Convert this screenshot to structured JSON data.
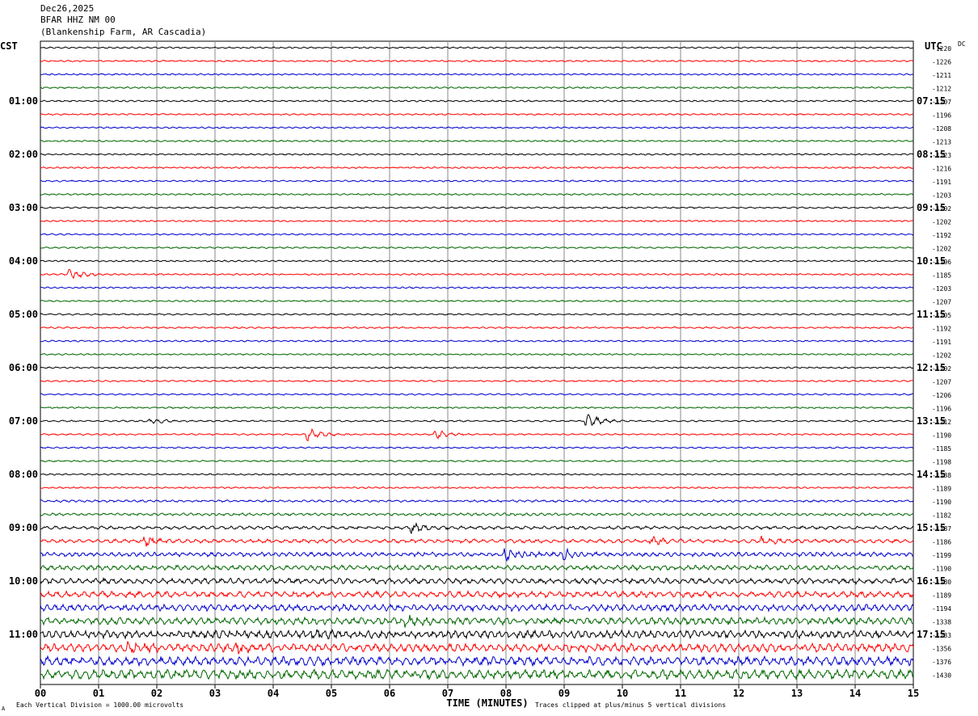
{
  "header": {
    "date": "Dec26,2025",
    "station": "BFAR HHZ NM 00",
    "location": "(Blankenship Farm, AR Cascadia)"
  },
  "labels": {
    "left_tz": "CST",
    "right_tz": "UTC",
    "dc": "DC",
    "xlabel": "TIME (MINUTES)",
    "scale_note": "Each Vertical Division = 1000.00 microvolts",
    "clip_note": "Traces clipped at plus/minus 5 vertical divisions",
    "corner_mark": "A"
  },
  "colors": {
    "trace_cycle": [
      "#000000",
      "#ff0000",
      "#0000cc",
      "#006600"
    ],
    "grid": "#888888"
  },
  "chart_data": {
    "type": "line",
    "subtype": "helicorder",
    "x_ticks": [
      "00",
      "01",
      "02",
      "03",
      "04",
      "05",
      "06",
      "07",
      "08",
      "09",
      "10",
      "11",
      "12",
      "13",
      "14",
      "15"
    ],
    "xlim": [
      0,
      15
    ],
    "minutes_per_trace": 15,
    "left_hour_labels": [
      "01:00",
      "02:00",
      "03:00",
      "04:00",
      "05:00",
      "06:00",
      "07:00",
      "08:00",
      "09:00",
      "10:00",
      "11:00"
    ],
    "right_hour_labels": [
      "07:15",
      "08:15",
      "09:15",
      "10:15",
      "11:15",
      "12:15",
      "13:15",
      "14:15",
      "15:15",
      "16:15",
      "17:15"
    ],
    "dc_offsets": [
      "-1220",
      "-1226",
      "-1211",
      "-1212",
      "-1207",
      "-1196",
      "-1208",
      "-1213",
      "-1223",
      "-1216",
      "-1191",
      "-1203",
      "-1202",
      "-1202",
      "-1192",
      "-1202",
      "-1196",
      "-1185",
      "-1203",
      "-1207",
      "-1205",
      "-1192",
      "-1191",
      "-1202",
      "-1202",
      "-1207",
      "-1206",
      "-1196",
      "-1212",
      "-1190",
      "-1185",
      "-1198",
      "-1188",
      "-1189",
      "-1190",
      "-1182",
      "-1187",
      "-1186",
      "-1199",
      "-1190",
      "-1180",
      "-1189",
      "-1194",
      "-1338",
      "-1233",
      "-1356",
      "-1376",
      "-1430"
    ],
    "events": [
      {
        "trace": 17,
        "minute": 0.5,
        "amp": 8
      },
      {
        "trace": 28,
        "minute": 9.4,
        "amp": 9
      },
      {
        "trace": 28,
        "minute": 1.9,
        "amp": 4
      },
      {
        "trace": 29,
        "minute": 4.6,
        "amp": 8
      },
      {
        "trace": 29,
        "minute": 6.8,
        "amp": 5
      },
      {
        "trace": 36,
        "minute": 6.4,
        "amp": 6
      },
      {
        "trace": 37,
        "minute": 1.8,
        "amp": 5
      },
      {
        "trace": 37,
        "minute": 10.5,
        "amp": 4
      },
      {
        "trace": 37,
        "minute": 12.4,
        "amp": 4
      },
      {
        "trace": 38,
        "minute": 8.0,
        "amp": 7
      },
      {
        "trace": 38,
        "minute": 9.0,
        "amp": 5
      },
      {
        "trace": 43,
        "minute": 6.3,
        "amp": 5
      },
      {
        "trace": 44,
        "minute": 4.7,
        "amp": 4
      },
      {
        "trace": 45,
        "minute": 3.4,
        "amp": 6
      },
      {
        "trace": 45,
        "minute": 1.5,
        "amp": 4
      }
    ]
  }
}
